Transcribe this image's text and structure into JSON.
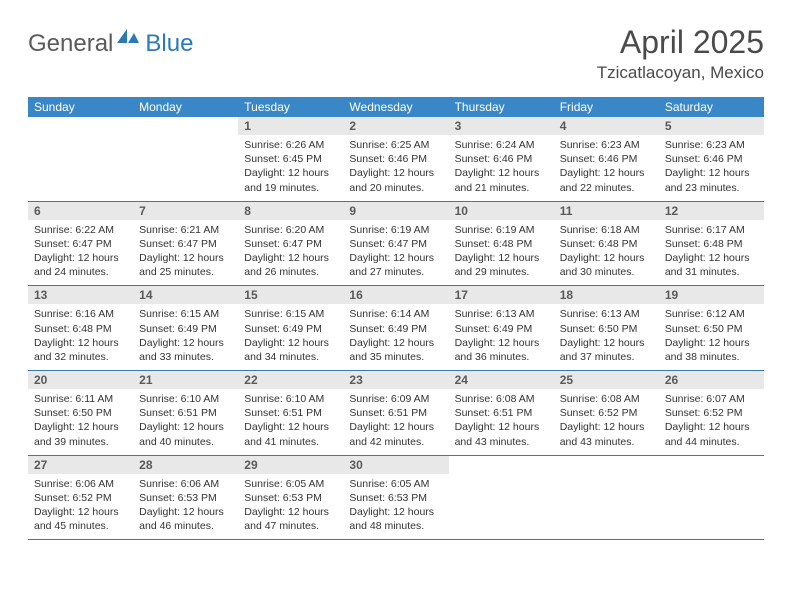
{
  "logo": {
    "general": "General",
    "blue": "Blue"
  },
  "title": "April 2025",
  "location": "Tzicatlacoyan, Mexico",
  "colors": {
    "header_bg": "#3a87c7",
    "header_text": "#ffffff",
    "daynum_bg": "#e8e8e8",
    "border": "#3a7aad",
    "accent": "#2a7ab8"
  },
  "day_headers": [
    "Sunday",
    "Monday",
    "Tuesday",
    "Wednesday",
    "Thursday",
    "Friday",
    "Saturday"
  ],
  "weeks": [
    [
      {
        "n": "",
        "sunrise": "",
        "sunset": "",
        "daylight": ""
      },
      {
        "n": "",
        "sunrise": "",
        "sunset": "",
        "daylight": ""
      },
      {
        "n": "1",
        "sunrise": "Sunrise: 6:26 AM",
        "sunset": "Sunset: 6:45 PM",
        "daylight": "Daylight: 12 hours and 19 minutes."
      },
      {
        "n": "2",
        "sunrise": "Sunrise: 6:25 AM",
        "sunset": "Sunset: 6:46 PM",
        "daylight": "Daylight: 12 hours and 20 minutes."
      },
      {
        "n": "3",
        "sunrise": "Sunrise: 6:24 AM",
        "sunset": "Sunset: 6:46 PM",
        "daylight": "Daylight: 12 hours and 21 minutes."
      },
      {
        "n": "4",
        "sunrise": "Sunrise: 6:23 AM",
        "sunset": "Sunset: 6:46 PM",
        "daylight": "Daylight: 12 hours and 22 minutes."
      },
      {
        "n": "5",
        "sunrise": "Sunrise: 6:23 AM",
        "sunset": "Sunset: 6:46 PM",
        "daylight": "Daylight: 12 hours and 23 minutes."
      }
    ],
    [
      {
        "n": "6",
        "sunrise": "Sunrise: 6:22 AM",
        "sunset": "Sunset: 6:47 PM",
        "daylight": "Daylight: 12 hours and 24 minutes."
      },
      {
        "n": "7",
        "sunrise": "Sunrise: 6:21 AM",
        "sunset": "Sunset: 6:47 PM",
        "daylight": "Daylight: 12 hours and 25 minutes."
      },
      {
        "n": "8",
        "sunrise": "Sunrise: 6:20 AM",
        "sunset": "Sunset: 6:47 PM",
        "daylight": "Daylight: 12 hours and 26 minutes."
      },
      {
        "n": "9",
        "sunrise": "Sunrise: 6:19 AM",
        "sunset": "Sunset: 6:47 PM",
        "daylight": "Daylight: 12 hours and 27 minutes."
      },
      {
        "n": "10",
        "sunrise": "Sunrise: 6:19 AM",
        "sunset": "Sunset: 6:48 PM",
        "daylight": "Daylight: 12 hours and 29 minutes."
      },
      {
        "n": "11",
        "sunrise": "Sunrise: 6:18 AM",
        "sunset": "Sunset: 6:48 PM",
        "daylight": "Daylight: 12 hours and 30 minutes."
      },
      {
        "n": "12",
        "sunrise": "Sunrise: 6:17 AM",
        "sunset": "Sunset: 6:48 PM",
        "daylight": "Daylight: 12 hours and 31 minutes."
      }
    ],
    [
      {
        "n": "13",
        "sunrise": "Sunrise: 6:16 AM",
        "sunset": "Sunset: 6:48 PM",
        "daylight": "Daylight: 12 hours and 32 minutes."
      },
      {
        "n": "14",
        "sunrise": "Sunrise: 6:15 AM",
        "sunset": "Sunset: 6:49 PM",
        "daylight": "Daylight: 12 hours and 33 minutes."
      },
      {
        "n": "15",
        "sunrise": "Sunrise: 6:15 AM",
        "sunset": "Sunset: 6:49 PM",
        "daylight": "Daylight: 12 hours and 34 minutes."
      },
      {
        "n": "16",
        "sunrise": "Sunrise: 6:14 AM",
        "sunset": "Sunset: 6:49 PM",
        "daylight": "Daylight: 12 hours and 35 minutes."
      },
      {
        "n": "17",
        "sunrise": "Sunrise: 6:13 AM",
        "sunset": "Sunset: 6:49 PM",
        "daylight": "Daylight: 12 hours and 36 minutes."
      },
      {
        "n": "18",
        "sunrise": "Sunrise: 6:13 AM",
        "sunset": "Sunset: 6:50 PM",
        "daylight": "Daylight: 12 hours and 37 minutes."
      },
      {
        "n": "19",
        "sunrise": "Sunrise: 6:12 AM",
        "sunset": "Sunset: 6:50 PM",
        "daylight": "Daylight: 12 hours and 38 minutes."
      }
    ],
    [
      {
        "n": "20",
        "sunrise": "Sunrise: 6:11 AM",
        "sunset": "Sunset: 6:50 PM",
        "daylight": "Daylight: 12 hours and 39 minutes."
      },
      {
        "n": "21",
        "sunrise": "Sunrise: 6:10 AM",
        "sunset": "Sunset: 6:51 PM",
        "daylight": "Daylight: 12 hours and 40 minutes."
      },
      {
        "n": "22",
        "sunrise": "Sunrise: 6:10 AM",
        "sunset": "Sunset: 6:51 PM",
        "daylight": "Daylight: 12 hours and 41 minutes."
      },
      {
        "n": "23",
        "sunrise": "Sunrise: 6:09 AM",
        "sunset": "Sunset: 6:51 PM",
        "daylight": "Daylight: 12 hours and 42 minutes."
      },
      {
        "n": "24",
        "sunrise": "Sunrise: 6:08 AM",
        "sunset": "Sunset: 6:51 PM",
        "daylight": "Daylight: 12 hours and 43 minutes."
      },
      {
        "n": "25",
        "sunrise": "Sunrise: 6:08 AM",
        "sunset": "Sunset: 6:52 PM",
        "daylight": "Daylight: 12 hours and 43 minutes."
      },
      {
        "n": "26",
        "sunrise": "Sunrise: 6:07 AM",
        "sunset": "Sunset: 6:52 PM",
        "daylight": "Daylight: 12 hours and 44 minutes."
      }
    ],
    [
      {
        "n": "27",
        "sunrise": "Sunrise: 6:06 AM",
        "sunset": "Sunset: 6:52 PM",
        "daylight": "Daylight: 12 hours and 45 minutes."
      },
      {
        "n": "28",
        "sunrise": "Sunrise: 6:06 AM",
        "sunset": "Sunset: 6:53 PM",
        "daylight": "Daylight: 12 hours and 46 minutes."
      },
      {
        "n": "29",
        "sunrise": "Sunrise: 6:05 AM",
        "sunset": "Sunset: 6:53 PM",
        "daylight": "Daylight: 12 hours and 47 minutes."
      },
      {
        "n": "30",
        "sunrise": "Sunrise: 6:05 AM",
        "sunset": "Sunset: 6:53 PM",
        "daylight": "Daylight: 12 hours and 48 minutes."
      },
      {
        "n": "",
        "sunrise": "",
        "sunset": "",
        "daylight": ""
      },
      {
        "n": "",
        "sunrise": "",
        "sunset": "",
        "daylight": ""
      },
      {
        "n": "",
        "sunrise": "",
        "sunset": "",
        "daylight": ""
      }
    ]
  ]
}
